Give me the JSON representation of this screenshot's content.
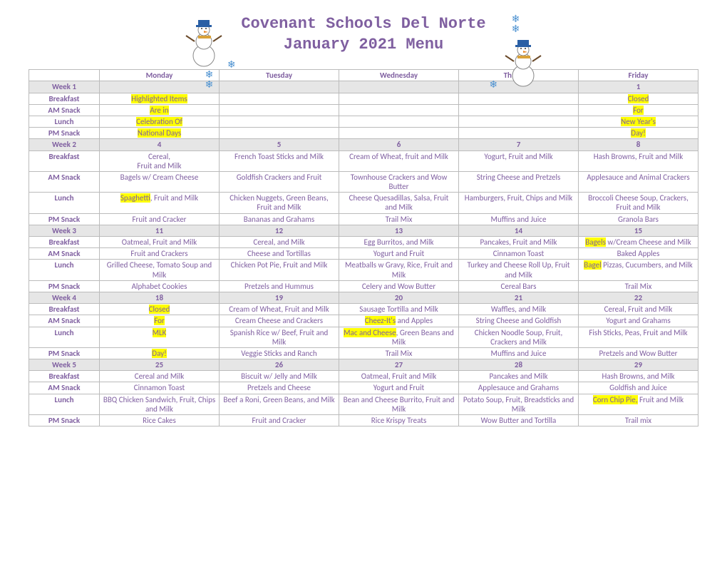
{
  "title_line1": "Covenant Schools Del Norte",
  "title_line2": "January 2021 Menu",
  "day_headers": [
    "Monday",
    "Tuesday",
    "Wednesday",
    "Thursday",
    "Friday"
  ],
  "row_labels": [
    "Breakfast",
    "AM Snack",
    "Lunch",
    "PM Snack"
  ],
  "weeks": [
    {
      "label": "Week 1",
      "dates": [
        "",
        "",
        "",
        "",
        "1"
      ],
      "breakfast": [
        "<mark>Highlighted Items</mark>",
        "",
        "",
        "",
        "<mark>Closed</mark>"
      ],
      "am": [
        "<mark>Are in</mark>",
        "",
        "",
        "",
        "<mark>For</mark>"
      ],
      "lunch": [
        "<mark>Celebration Of</mark>",
        "",
        "",
        "",
        "<mark>New Year's</mark>"
      ],
      "pm": [
        "<mark>National Days</mark>",
        "",
        "",
        "",
        "<mark>Day!</mark>"
      ]
    },
    {
      "label": "Week 2",
      "dates": [
        "4",
        "5",
        "6",
        "7",
        "8"
      ],
      "breakfast": [
        "Cereal,<br>Fruit and Milk",
        "French Toast Sticks and Milk",
        "Cream of Wheat, fruit and Milk",
        "Yogurt, Fruit and Milk",
        "Hash Browns, Fruit and Milk"
      ],
      "am": [
        "Bagels w/ Cream Cheese",
        "Goldfish Crackers and Fruit",
        "Townhouse Crackers and Wow Butter",
        "String Cheese and Pretzels",
        "Applesauce and Animal Crackers"
      ],
      "lunch": [
        "<mark>Spaghetti</mark>, Fruit and Milk",
        "Chicken Nuggets, Green Beans, Fruit and Milk",
        "Cheese Quesadillas, Salsa, Fruit and Milk",
        "Hamburgers, Fruit, Chips and Milk",
        "Broccoli Cheese Soup, Crackers, Fruit and Milk"
      ],
      "pm": [
        "Fruit and Cracker",
        "Bananas and Grahams",
        "Trail Mix",
        "Muffins and Juice",
        "Granola Bars"
      ]
    },
    {
      "label": "Week 3",
      "dates": [
        "11",
        "12",
        "13",
        "14",
        "15"
      ],
      "breakfast": [
        "Oatmeal, Fruit and Milk",
        "Cereal, and Milk",
        "Egg Burritos, and Milk",
        "Pancakes, Fruit and Milk",
        "<mark>Bagels</mark> w/Cream Cheese and Milk"
      ],
      "am": [
        "Fruit and Crackers",
        "Cheese and Tortillas",
        "Yogurt and Fruit",
        "Cinnamon Toast",
        "Baked Apples"
      ],
      "lunch": [
        "Grilled Cheese, Tomato Soup and Milk",
        "Chicken Pot Pie, Fruit and Milk",
        "Meatballs w Gravy, Rice, Fruit and Milk",
        "Turkey and Cheese Roll Up, Fruit and Milk",
        "<mark>Bagel</mark> Pizzas, Cucumbers, and Milk"
      ],
      "pm": [
        "Alphabet Cookies",
        "Pretzels and Hummus",
        "Celery and Wow Butter",
        "Cereal Bars",
        "Trail Mix"
      ]
    },
    {
      "label": "Week 4",
      "dates": [
        "18",
        "19",
        "20",
        "21",
        "22"
      ],
      "breakfast": [
        "<mark>Closed</mark>",
        "Cream of Wheat, Fruit and Milk",
        "Sausage Tortilla and Milk",
        "Waffles, and Milk",
        "Cereal, Fruit and Milk"
      ],
      "am": [
        "<mark>For</mark>",
        "Cream Cheese and Crackers",
        "<mark>Cheez-It's</mark> and Apples",
        "String Cheese and Goldfish",
        "Yogurt and Grahams"
      ],
      "lunch": [
        "<mark>MLK</mark>",
        "Spanish Rice w/ Beef, Fruit and Milk",
        "<mark>Mac and Cheese</mark>, Green Beans and Milk",
        "Chicken Noodle Soup, Fruit, Crackers and Milk",
        "Fish Sticks, Peas, Fruit and Milk"
      ],
      "pm": [
        "<mark>Day!</mark>",
        "Veggie Sticks and Ranch",
        "Trail Mix",
        "Muffins and Juice",
        "Pretzels and Wow Butter"
      ]
    },
    {
      "label": "Week 5",
      "dates": [
        "25",
        "26",
        "27",
        "28",
        "29"
      ],
      "breakfast": [
        "Cereal and Milk",
        "Biscuit w/ Jelly and Milk",
        "Oatmeal, Fruit and Milk",
        "Pancakes and Milk",
        "Hash Browns, and Milk"
      ],
      "am": [
        "Cinnamon Toast",
        "Pretzels and Cheese",
        "Yogurt and Fruit",
        "Applesauce and Grahams",
        "Goldfish and Juice"
      ],
      "lunch": [
        "BBQ Chicken Sandwich, Fruit, Chips and Milk",
        "Beef a Roni, Green Beans, and Milk",
        "Bean and Cheese Burrito, Fruit and Milk",
        "Potato Soup, Fruit, Breadsticks and Milk",
        "<mark>Corn Chip Pie,</mark> Fruit and Milk"
      ],
      "pm": [
        "Rice Cakes",
        "Fruit and Cracker",
        "Rice Krispy Treats",
        "Wow Butter and Tortilla",
        "Trail mix"
      ]
    }
  ],
  "style": {
    "text_color": "#7f5fa0",
    "highlight_bg": "#ffff00",
    "week_row_bg": "#e6e6e6",
    "border_color": "#bbbbbb",
    "title_font": "Courier New",
    "body_font": "Calibri",
    "snowflake_color": "#4a90d0"
  }
}
